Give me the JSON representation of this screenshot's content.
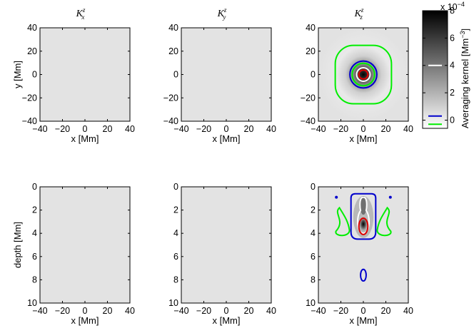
{
  "chart_data": [
    {
      "type": "heatmap",
      "title": "K",
      "title_sub": "z",
      "title_sub2": "x",
      "xlabel": "x [Mm]",
      "ylabel": "y [Mm]",
      "xlim": [
        -40,
        40
      ],
      "ylim": [
        -40,
        40
      ],
      "xticks": [
        "−40",
        "−20",
        "0",
        "20",
        "40"
      ],
      "yticks": [
        "40",
        "20",
        "0",
        "−20",
        "−40"
      ],
      "field": "uniform",
      "contours": []
    },
    {
      "type": "heatmap",
      "title": "K",
      "title_sub": "z",
      "title_sub2": "y",
      "xlabel": "x [Mm]",
      "ylabel": "",
      "xlim": [
        -40,
        40
      ],
      "ylim": [
        -40,
        40
      ],
      "xticks": [
        "−40",
        "−20",
        "0",
        "20",
        "40"
      ],
      "yticks": [
        "40",
        "20",
        "0",
        "−20",
        "−40"
      ],
      "field": "uniform",
      "contours": []
    },
    {
      "type": "heatmap",
      "title": "K",
      "title_sub": "z",
      "title_sub2": "z",
      "xlabel": "x [Mm]",
      "ylabel": "",
      "xlim": [
        -40,
        40
      ],
      "ylim": [
        -40,
        40
      ],
      "xticks": [
        "−40",
        "−20",
        "0",
        "20",
        "40"
      ],
      "yticks": [
        "40",
        "20",
        "0",
        "−20",
        "−40"
      ],
      "field": "peak_center",
      "peak": {
        "x": 0,
        "y": 0
      },
      "contours": [
        {
          "color": "#00ee00",
          "shape": "rounded_square",
          "cx": 0,
          "cy": 0,
          "half": 25
        },
        {
          "color": "#0000cc",
          "shape": "circle",
          "cx": 0,
          "cy": 0,
          "r": 12
        },
        {
          "color": "#00ee00",
          "shape": "circle",
          "cx": 0,
          "cy": 0,
          "r": 10
        },
        {
          "color": "#ffffff",
          "shape": "circle",
          "cx": 0,
          "cy": 0,
          "r": 6
        },
        {
          "color": "#dd0000",
          "shape": "circle",
          "cx": 0,
          "cy": 0,
          "r": 4
        }
      ]
    },
    {
      "type": "heatmap",
      "title": "",
      "xlabel": "x [Mm]",
      "ylabel": "depth [Mm]",
      "xlim": [
        -40,
        40
      ],
      "ylim": [
        0,
        10
      ],
      "xticks": [
        "−40",
        "−20",
        "0",
        "20",
        "40"
      ],
      "yticks": [
        "0",
        "2",
        "4",
        "6",
        "8",
        "10"
      ],
      "field": "uniform",
      "contours": []
    },
    {
      "type": "heatmap",
      "title": "",
      "xlabel": "x [Mm]",
      "ylabel": "",
      "xlim": [
        -40,
        40
      ],
      "ylim": [
        0,
        10
      ],
      "xticks": [
        "−40",
        "−20",
        "0",
        "20",
        "40"
      ],
      "yticks": [
        "0",
        "2",
        "4",
        "6",
        "8",
        "10"
      ],
      "field": "uniform",
      "contours": []
    },
    {
      "type": "heatmap",
      "title": "",
      "xlabel": "x [Mm]",
      "ylabel": "",
      "xlim": [
        -40,
        40
      ],
      "ylim": [
        0,
        10
      ],
      "xticks": [
        "−40",
        "−20",
        "0",
        "20",
        "40"
      ],
      "yticks": [
        "0",
        "2",
        "4",
        "6",
        "8",
        "10"
      ],
      "field": "peak_depth",
      "peak": {
        "x": 0,
        "y": 3.2
      },
      "contours": [
        {
          "color": "#0000cc",
          "shape": "depth_blob",
          "x_half": 11,
          "top": 0.6,
          "bottom": 4.5
        },
        {
          "color": "#ffffff",
          "shape": "bulb",
          "x_half": 5,
          "top": 0.9,
          "neck": 1.8,
          "bottom": 4.0
        },
        {
          "color": "#dd0000",
          "shape": "ellipse",
          "cx": 0,
          "cy": 3.4,
          "rx": 4,
          "ry": 0.7
        },
        {
          "color": "#00ee00",
          "shape": "lobe",
          "cx": -20,
          "cy": 2.9,
          "side": -1
        },
        {
          "color": "#00ee00",
          "shape": "lobe",
          "cx": 20,
          "cy": 2.9,
          "side": 1
        },
        {
          "color": "#0000cc",
          "shape": "ellipse",
          "cx": 0,
          "cy": 7.6,
          "rx": 2.5,
          "ry": 0.5
        },
        {
          "color": "#0000cc",
          "shape": "dot",
          "cx": -24,
          "cy": 0.9
        },
        {
          "color": "#0000cc",
          "shape": "dot",
          "cx": 24,
          "cy": 0.9
        }
      ]
    }
  ],
  "colorbar": {
    "label": "Averaging kernel [Mm",
    "label_sup": "−3",
    "label_end": "]",
    "exponent": "x 10",
    "exponent_sup": "−4",
    "ticks": [
      "8",
      "6",
      "4",
      "2",
      "0"
    ],
    "range": [
      -0.6,
      8
    ],
    "contour_marks": [
      {
        "color": "#ffffff",
        "value": 4
      },
      {
        "color": "#0000cc",
        "value": 0.3
      },
      {
        "color": "#00ee00",
        "value": -0.3
      }
    ]
  }
}
